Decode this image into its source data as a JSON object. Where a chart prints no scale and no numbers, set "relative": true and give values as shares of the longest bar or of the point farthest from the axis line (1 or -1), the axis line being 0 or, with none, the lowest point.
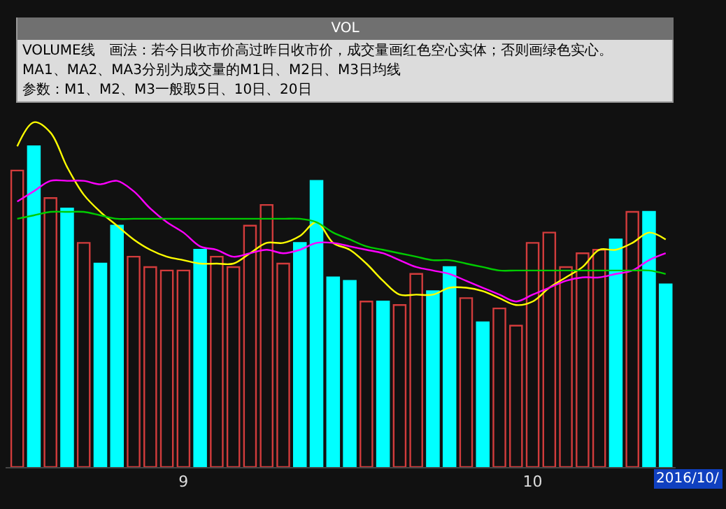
{
  "chart_data": {
    "type": "bar",
    "title": "VOL",
    "relative": true,
    "grid": false,
    "categories": [
      null,
      null,
      null,
      null,
      null,
      null,
      null,
      null,
      null,
      null,
      "9",
      null,
      null,
      null,
      null,
      null,
      null,
      null,
      null,
      null,
      null,
      null,
      null,
      null,
      null,
      null,
      null,
      null,
      null,
      null,
      null,
      "10",
      null,
      null,
      null,
      null,
      null,
      null,
      null,
      null
    ],
    "values": [
      0.86,
      0.93,
      0.78,
      0.75,
      0.65,
      0.59,
      0.7,
      0.61,
      0.58,
      0.57,
      0.57,
      0.63,
      0.61,
      0.58,
      0.7,
      0.76,
      0.59,
      0.65,
      0.83,
      0.55,
      0.54,
      0.48,
      0.48,
      0.47,
      0.56,
      0.51,
      0.58,
      0.49,
      0.42,
      0.46,
      0.41,
      0.65,
      0.68,
      0.58,
      0.62,
      0.63,
      0.66,
      0.74,
      0.74,
      0.53
    ],
    "colors": [
      "#d23c3c",
      "#00ffff",
      "#d23c3c",
      "#00ffff",
      "#d23c3c",
      "#00ffff",
      "#00ffff",
      "#d23c3c",
      "#d23c3c",
      "#d23c3c",
      "#d23c3c",
      "#00ffff",
      "#d23c3c",
      "#d23c3c",
      "#d23c3c",
      "#d23c3c",
      "#d23c3c",
      "#00ffff",
      "#00ffff",
      "#00ffff",
      "#00ffff",
      "#d23c3c",
      "#00ffff",
      "#d23c3c",
      "#d23c3c",
      "#00ffff",
      "#00ffff",
      "#d23c3c",
      "#00ffff",
      "#d23c3c",
      "#d23c3c",
      "#d23c3c",
      "#d23c3c",
      "#d23c3c",
      "#d23c3c",
      "#d23c3c",
      "#00ffff",
      "#d23c3c",
      "#00ffff",
      "#00ffff"
    ],
    "series": [
      {
        "type": "line",
        "color": "#ffff00",
        "values": [
          0.93,
          1.0,
          0.97,
          0.87,
          0.79,
          0.74,
          0.7,
          0.66,
          0.63,
          0.61,
          0.6,
          0.59,
          0.59,
          0.59,
          0.62,
          0.65,
          0.65,
          0.67,
          0.71,
          0.65,
          0.63,
          0.59,
          0.54,
          0.5,
          0.5,
          0.5,
          0.52,
          0.52,
          0.51,
          0.49,
          0.47,
          0.48,
          0.52,
          0.55,
          0.58,
          0.63,
          0.63,
          0.65,
          0.68,
          0.66
        ]
      },
      {
        "type": "line",
        "color": "#ff00ff",
        "values": [
          0.77,
          0.8,
          0.83,
          0.83,
          0.83,
          0.82,
          0.83,
          0.8,
          0.75,
          0.71,
          0.68,
          0.64,
          0.63,
          0.61,
          0.62,
          0.63,
          0.62,
          0.63,
          0.65,
          0.65,
          0.64,
          0.63,
          0.62,
          0.6,
          0.58,
          0.57,
          0.56,
          0.54,
          0.52,
          0.5,
          0.48,
          0.5,
          0.52,
          0.54,
          0.55,
          0.55,
          0.56,
          0.57,
          0.6,
          0.62
        ]
      },
      {
        "type": "line",
        "color": "#00cc00",
        "values": [
          0.72,
          0.73,
          0.74,
          0.74,
          0.74,
          0.73,
          0.72,
          0.72,
          0.72,
          0.72,
          0.72,
          0.72,
          0.72,
          0.72,
          0.72,
          0.72,
          0.72,
          0.72,
          0.71,
          0.68,
          0.66,
          0.64,
          0.63,
          0.62,
          0.61,
          0.6,
          0.6,
          0.59,
          0.58,
          0.57,
          0.57,
          0.57,
          0.57,
          0.57,
          0.57,
          0.57,
          0.57,
          0.57,
          0.57,
          0.56
        ]
      }
    ],
    "annotations": [
      "VOLUME线　画法：若今日收市价高过昨日收市价，成交量画红色空心实体；否则画绿色实心。",
      "MA1、MA2、MA3分别为成交量的M1日、M2日、M3日均线",
      "参数：M1、M2、M3一般取5日、10日、20日",
      "2016/10/"
    ]
  }
}
